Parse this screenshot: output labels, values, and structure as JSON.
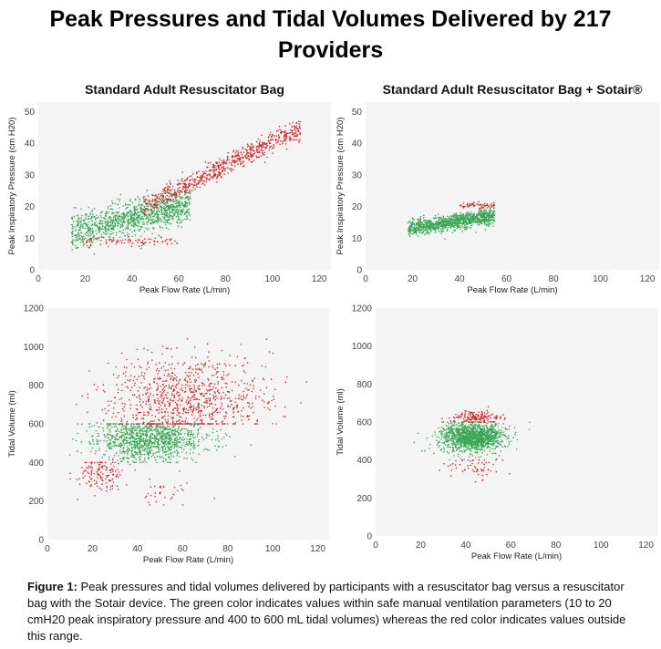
{
  "title_line1": "Peak Pressures and Tidal Volumes Delivered by 217",
  "title_line2": "Providers",
  "caption_label": "Figure 1:",
  "caption_text": "Peak pressures and tidal volumes delivered by participants with a resuscitator bag versus a resuscitator bag with the Sotair device. The green color indicates values within safe manual ventilation parameters (10 to 20 cmH20 peak inspiratory pressure and 400 to 600 mL tidal volumes) whereas the red color indicates values outside this range.",
  "colors": {
    "safe": "#3aa655",
    "unsafe": "#cc2b2b"
  },
  "chart_data": [
    {
      "type": "scatter",
      "id": "pip-standard",
      "title": "Standard Adult Resuscitator Bag",
      "xlabel": "Peak Flow Rate (L/min)",
      "ylabel": "Peak Inspiratory Pressure (cm H20)",
      "xlim": [
        0,
        125
      ],
      "ylim": [
        0,
        53
      ],
      "xticks": [
        0,
        20,
        40,
        60,
        80,
        100,
        120
      ],
      "yticks": [
        0,
        10,
        20,
        30,
        40,
        50
      ],
      "series": [
        {
          "name": "within safe range",
          "color": "#3aa655",
          "clusters": [
            {
              "x_range": [
                14,
                65
              ],
              "y_at_x_start": 12,
              "slope": 0.17,
              "spread": 2.6,
              "count": 1100
            }
          ]
        },
        {
          "name": "outside safe range",
          "color": "#cc2b2b",
          "clusters": [
            {
              "x_range": [
                45,
                112
              ],
              "y_at_x_start": 20,
              "slope": 0.37,
              "spread": 1.6,
              "count": 700
            },
            {
              "x_range": [
                18,
                60
              ],
              "y_at_x_start": 9,
              "slope": 0.0,
              "spread": 0.7,
              "count": 90
            }
          ]
        }
      ]
    },
    {
      "type": "scatter",
      "id": "pip-sotair",
      "title": "Standard Adult Resuscitator Bag + Sotair®",
      "xlabel": "Peak Flow Rate (L/min)",
      "ylabel": "Peak Inspiratory Pressure (cm H20)",
      "xlim": [
        0,
        125
      ],
      "ylim": [
        0,
        53
      ],
      "xticks": [
        0,
        20,
        40,
        60,
        80,
        100,
        120
      ],
      "yticks": [
        0,
        10,
        20,
        30,
        40,
        50
      ],
      "series": [
        {
          "name": "within safe range",
          "color": "#3aa655",
          "clusters": [
            {
              "x_range": [
                18,
                55
              ],
              "y_at_x_start": 13,
              "slope": 0.11,
              "spread": 1.2,
              "count": 1100
            }
          ]
        },
        {
          "name": "outside safe range",
          "color": "#cc2b2b",
          "clusters": [
            {
              "x_range": [
                40,
                55
              ],
              "y_at_x_start": 20.3,
              "slope": 0.0,
              "spread": 0.5,
              "count": 60
            }
          ]
        }
      ]
    },
    {
      "type": "scatter",
      "id": "tv-standard",
      "title": "",
      "xlabel": "Peak Flow Rate (L/min)",
      "ylabel": "Tidal Volume (ml)",
      "xlim": [
        0,
        125
      ],
      "ylim": [
        0,
        1200
      ],
      "xticks": [
        0,
        20,
        40,
        60,
        80,
        100,
        120
      ],
      "yticks": [
        0,
        200,
        400,
        600,
        800,
        1000,
        1200
      ],
      "series": [
        {
          "name": "within safe range",
          "color": "#3aa655",
          "clusters": [
            {
              "x_center": 45,
              "x_sd": 12,
              "y_center": 520,
              "y_sd": 55,
              "y_range": [
                400,
                600
              ],
              "count": 1100
            }
          ]
        },
        {
          "name": "outside safe range",
          "color": "#cc2b2b",
          "clusters": [
            {
              "x_center": 62,
              "x_sd": 18,
              "y_center": 730,
              "y_sd": 110,
              "y_range": [
                600,
                1180
              ],
              "count": 900
            },
            {
              "x_center": 24,
              "x_sd": 5,
              "y_center": 340,
              "y_sd": 45,
              "y_range": [
                180,
                400
              ],
              "count": 140
            },
            {
              "x_center": 55,
              "x_sd": 8,
              "y_center": 250,
              "y_sd": 40,
              "y_range": [
                180,
                400
              ],
              "count": 35
            }
          ]
        }
      ]
    },
    {
      "type": "scatter",
      "id": "tv-sotair",
      "title": "",
      "xlabel": "Peak Flow Rate (L/min)",
      "ylabel": "Tidal Volume (ml)",
      "xlim": [
        0,
        125
      ],
      "ylim": [
        0,
        1200
      ],
      "xticks": [
        0,
        20,
        40,
        60,
        80,
        100,
        120
      ],
      "yticks": [
        0,
        200,
        400,
        600,
        800,
        1000,
        1200
      ],
      "series": [
        {
          "name": "within safe range",
          "color": "#3aa655",
          "clusters": [
            {
              "x_center": 43,
              "x_sd": 7,
              "y_center": 520,
              "y_sd": 38,
              "y_range": [
                400,
                600
              ],
              "count": 1300
            }
          ]
        },
        {
          "name": "outside safe range",
          "color": "#cc2b2b",
          "clusters": [
            {
              "x_center": 45,
              "x_sd": 6,
              "y_center": 625,
              "y_sd": 18,
              "y_range": [
                600,
                700
              ],
              "count": 160
            },
            {
              "x_center": 44,
              "x_sd": 6,
              "y_center": 360,
              "y_sd": 28,
              "y_range": [
                160,
                400
              ],
              "count": 60
            }
          ]
        }
      ]
    }
  ]
}
